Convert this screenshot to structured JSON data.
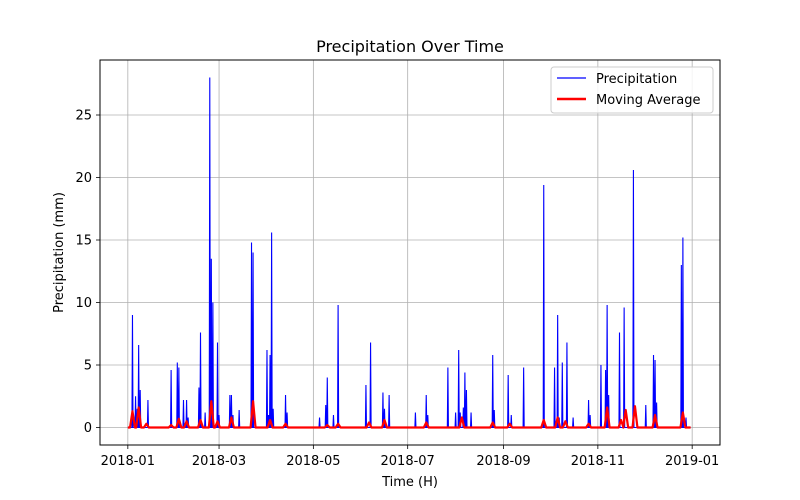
{
  "chart_data": {
    "type": "line",
    "title": "Precipitation Over Time",
    "xlabel": "Time (H)",
    "ylabel": "Precipitation (mm)",
    "xlim": [
      "2017-12-14",
      "2019-01-19"
    ],
    "ylim": [
      -1.4,
      29.4
    ],
    "x_ticks": [
      "2018-01",
      "2018-03",
      "2018-05",
      "2018-07",
      "2018-09",
      "2018-11",
      "2019-01"
    ],
    "y_ticks": [
      0,
      5,
      10,
      15,
      20,
      25
    ],
    "grid": true,
    "legend_position": "top-right",
    "series": [
      {
        "name": "Precipitation",
        "color": "#0000ff",
        "spikes": [
          [
            "2018-01-04",
            9.0
          ],
          [
            "2018-01-06",
            2.5
          ],
          [
            "2018-01-07",
            1.5
          ],
          [
            "2018-01-08",
            6.6
          ],
          [
            "2018-01-09",
            3.0
          ],
          [
            "2018-01-14",
            2.2
          ],
          [
            "2018-01-29",
            4.6
          ],
          [
            "2018-02-02",
            5.2
          ],
          [
            "2018-02-03",
            4.8
          ],
          [
            "2018-02-06",
            2.2
          ],
          [
            "2018-02-08",
            2.2
          ],
          [
            "2018-02-09",
            0.8
          ],
          [
            "2018-02-16",
            3.2
          ],
          [
            "2018-02-17",
            7.6
          ],
          [
            "2018-02-20",
            1.2
          ],
          [
            "2018-02-23",
            28.0
          ],
          [
            "2018-02-24",
            13.5
          ],
          [
            "2018-02-25",
            10.0
          ],
          [
            "2018-02-28",
            6.8
          ],
          [
            "2018-03-01",
            1.0
          ],
          [
            "2018-03-08",
            2.6
          ],
          [
            "2018-03-09",
            2.6
          ],
          [
            "2018-03-10",
            1.0
          ],
          [
            "2018-03-14",
            1.4
          ],
          [
            "2018-03-22",
            14.8
          ],
          [
            "2018-03-23",
            14.0
          ],
          [
            "2018-04-01",
            6.2
          ],
          [
            "2018-04-02",
            1.0
          ],
          [
            "2018-04-03",
            5.8
          ],
          [
            "2018-04-04",
            15.6
          ],
          [
            "2018-04-05",
            1.5
          ],
          [
            "2018-04-13",
            2.6
          ],
          [
            "2018-04-14",
            1.2
          ],
          [
            "2018-05-05",
            0.8
          ],
          [
            "2018-05-09",
            1.8
          ],
          [
            "2018-05-10",
            4.0
          ],
          [
            "2018-05-14",
            1.0
          ],
          [
            "2018-05-17",
            9.8
          ],
          [
            "2018-06-04",
            3.4
          ],
          [
            "2018-06-07",
            6.8
          ],
          [
            "2018-06-15",
            2.8
          ],
          [
            "2018-06-16",
            1.5
          ],
          [
            "2018-06-19",
            2.6
          ],
          [
            "2018-07-06",
            1.2
          ],
          [
            "2018-07-13",
            2.6
          ],
          [
            "2018-07-14",
            1.0
          ],
          [
            "2018-07-27",
            4.8
          ],
          [
            "2018-08-01",
            1.2
          ],
          [
            "2018-08-03",
            6.2
          ],
          [
            "2018-08-04",
            1.2
          ],
          [
            "2018-08-06",
            1.6
          ],
          [
            "2018-08-07",
            4.4
          ],
          [
            "2018-08-08",
            3.0
          ],
          [
            "2018-08-11",
            1.2
          ],
          [
            "2018-08-25",
            5.8
          ],
          [
            "2018-08-26",
            1.4
          ],
          [
            "2018-09-04",
            4.2
          ],
          [
            "2018-09-06",
            1.0
          ],
          [
            "2018-09-14",
            4.8
          ],
          [
            "2018-09-27",
            19.4
          ],
          [
            "2018-10-04",
            4.8
          ],
          [
            "2018-10-06",
            9.0
          ],
          [
            "2018-10-07",
            0.8
          ],
          [
            "2018-10-09",
            5.2
          ],
          [
            "2018-10-12",
            6.8
          ],
          [
            "2018-10-16",
            0.8
          ],
          [
            "2018-10-26",
            2.2
          ],
          [
            "2018-10-27",
            1.0
          ],
          [
            "2018-11-03",
            5.0
          ],
          [
            "2018-11-06",
            4.6
          ],
          [
            "2018-11-07",
            9.8
          ],
          [
            "2018-11-08",
            2.6
          ],
          [
            "2018-11-15",
            7.6
          ],
          [
            "2018-11-18",
            9.6
          ],
          [
            "2018-11-24",
            20.6
          ],
          [
            "2018-12-02",
            1.8
          ],
          [
            "2018-12-07",
            5.8
          ],
          [
            "2018-12-08",
            5.4
          ],
          [
            "2018-12-09",
            2.0
          ],
          [
            "2018-12-25",
            13.0
          ],
          [
            "2018-12-26",
            15.2
          ],
          [
            "2018-12-28",
            0.8
          ]
        ]
      },
      {
        "name": "Moving Average",
        "color": "#ff0000",
        "bumps": [
          [
            "2018-01-04",
            1.3
          ],
          [
            "2018-01-08",
            1.6
          ],
          [
            "2018-01-13",
            0.3
          ],
          [
            "2018-01-29",
            0.2
          ],
          [
            "2018-02-03",
            0.7
          ],
          [
            "2018-02-08",
            0.5
          ],
          [
            "2018-02-17",
            0.6
          ],
          [
            "2018-02-24",
            2.1
          ],
          [
            "2018-02-28",
            0.5
          ],
          [
            "2018-03-09",
            0.8
          ],
          [
            "2018-03-23",
            2.1
          ],
          [
            "2018-04-03",
            0.6
          ],
          [
            "2018-04-13",
            0.3
          ],
          [
            "2018-05-10",
            0.2
          ],
          [
            "2018-05-17",
            0.3
          ],
          [
            "2018-06-06",
            0.4
          ],
          [
            "2018-06-16",
            0.6
          ],
          [
            "2018-07-13",
            0.4
          ],
          [
            "2018-08-05",
            0.8
          ],
          [
            "2018-08-25",
            0.4
          ],
          [
            "2018-09-05",
            0.3
          ],
          [
            "2018-09-27",
            0.6
          ],
          [
            "2018-10-06",
            0.8
          ],
          [
            "2018-10-11",
            0.5
          ],
          [
            "2018-10-26",
            0.3
          ],
          [
            "2018-11-07",
            1.6
          ],
          [
            "2018-11-16",
            0.6
          ],
          [
            "2018-11-19",
            1.4
          ],
          [
            "2018-11-25",
            1.7
          ],
          [
            "2018-12-08",
            1.0
          ],
          [
            "2018-12-26",
            1.2
          ]
        ]
      }
    ]
  }
}
